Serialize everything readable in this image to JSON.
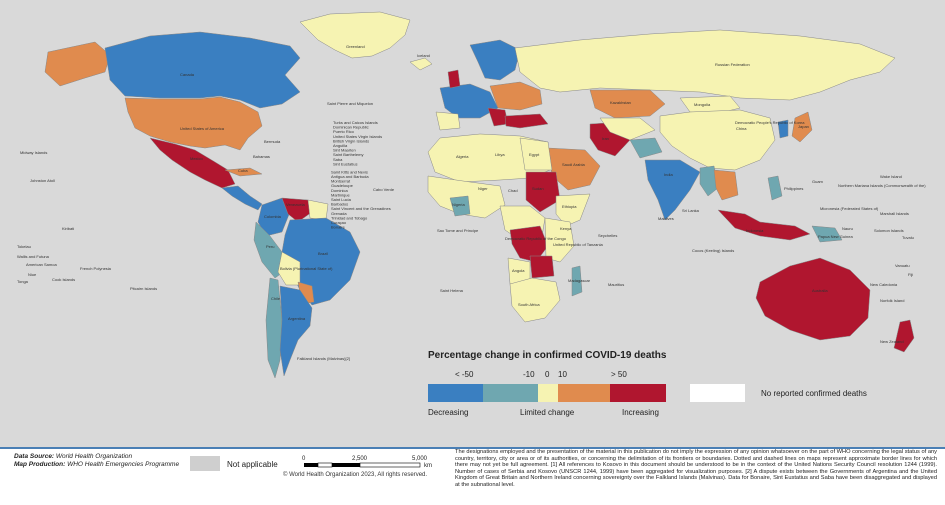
{
  "legend": {
    "title": "Percentage change in confirmed COVID-19 deaths",
    "ticks": [
      "< -50",
      "-10",
      "0",
      "10",
      "> 50"
    ],
    "categories": [
      {
        "label": "Decreasing",
        "color": "#3a7fc1"
      },
      {
        "label": "Limited change",
        "color": "#6fa7b0"
      },
      {
        "label": "",
        "color": "#f6f3b2"
      },
      {
        "label": "",
        "color": "#e08b4e"
      },
      {
        "label": "Increasing",
        "color": "#b0162f"
      }
    ],
    "no_data_label": "No reported confirmed deaths",
    "no_data_color": "#ffffff"
  },
  "footer": {
    "source_key": "Data Source:",
    "source_value": "World Health Organization",
    "production_key": "Map Production:",
    "production_value": "WHO Health Emergencies Programme",
    "not_applicable": "Not applicable",
    "scale_ticks": [
      "0",
      "2,500",
      "5,000"
    ],
    "scale_unit": "km",
    "copyright": "© World Health Organization 2023, All rights reserved.",
    "disclaimer": "The designations employed and the presentation of the material in this publication do not imply the expression of any opinion whatsoever on the part of WHO concerning the legal status of any country, territory, city or area or of its authorities, or concerning the delimitation of its frontiers or boundaries. Dotted and dashed lines on maps represent approximate border lines for which there may not yet be full agreement. [1] All references to Kosovo in this document should be understood to be in the context of the United Nations Security Council resolution 1244 (1999). Number of cases of Serbia and Kosovo (UNSCR 1244, 1999) have been aggregated for visualization purposes. [2] A dispute exists between the Governments of Argentina and the United Kingdom of Great Britain and Northern Ireland concerning sovereignty over the Falkland Islands (Malvinas). Data for Bonaire, Sint Eustatius and Saba have been disaggregated and displayed at the subnational level."
  },
  "map_labels": {
    "greenland": "Greenland",
    "iceland": "Iceland",
    "russia": "Russian Federation",
    "canada": "Canada",
    "usa": "United States of America",
    "mexico": "Mexico",
    "bermuda": "Bermuda",
    "bahamas": "Bahamas",
    "cuba": "Cuba",
    "brazil": "Brazil",
    "argentina": "Argentina",
    "peru": "Peru",
    "chile": "Chile",
    "bolivia": "Bolivia (Plurinational State of)",
    "colombia": "Colombia",
    "venezuela": "Venezuela",
    "china": "China",
    "india": "India",
    "kazakhstan": "Kazakhstan",
    "mongolia": "Mongolia",
    "australia": "Australia",
    "new_zealand": "New Zealand",
    "indonesia": "Indonesia",
    "saudi_arabia": "Saudi Arabia",
    "iran": "Iran",
    "egypt": "Egypt",
    "algeria": "Algeria",
    "libya": "Libya",
    "niger": "Niger",
    "chad": "Chad",
    "sudan": "Sudan",
    "ethiopia": "Ethiopia",
    "angola": "Angola",
    "south_africa": "South Africa",
    "madagascar": "Madagascar",
    "drc": "Democratic Republic of the Congo",
    "tanzania": "United Republic of Tanzania",
    "kenya": "Kenya",
    "nigeria": "Nigeria",
    "japan": "Japan",
    "dprk": "Democratic People's Republic of Korea",
    "philippines": "Philippines",
    "papua": "Papua New Guinea",
    "hawaii": "Midway Islands",
    "johnston": "Johnston Atoll",
    "kiribati": "Kiribati",
    "tokelau": "Tokelau",
    "wallis": "Wallis and Futuna",
    "samoa": "American Samoa",
    "niue": "Niue",
    "tonga": "Tonga",
    "cook": "Cook Islands",
    "polynesia": "French Polynesia",
    "pitcairn": "Pitcairn Islands",
    "falkland": "Falkland Islands (Malvinas)[2]",
    "saint_pierre": "Saint Pierre and Miquelon",
    "cabo_verde": "Cabo Verde",
    "sao_tome": "Sao Tome and Principe",
    "saint_helena": "Saint Helena",
    "seychelles": "Seychelles",
    "mauritius": "Mauritius",
    "sri_lanka": "Sri Lanka",
    "maldives": "Maldives",
    "guam": "Guam",
    "marshall": "Marshall Islands",
    "micronesia": "Micronesia (Federated States of)",
    "nauru": "Nauru",
    "solomon": "Solomon Islands",
    "tuvalu": "Tuvalu",
    "vanuatu": "Vanuatu",
    "fiji": "Fiji",
    "new_caledonia": "New Caledonia",
    "norfolk": "Norfolk Island",
    "wake": "Wake Island",
    "n_mariana": "Northern Mariana Islands (Commonwealth of the)",
    "cocos": "Cocos (Keeling) Islands",
    "caribbean": [
      "Turks and Caicos Islands",
      "Dominican Republic",
      "Puerto Rico",
      "United States Virgin Islands",
      "British Virgin Islands",
      "Anguilla",
      "Sint Maarten",
      "Saint Barthelemy",
      "Saba",
      "Sint Eustatius",
      "Saint Kitts and Nevis",
      "Antigua and Barbuda",
      "Montserrat",
      "Guadeloupe",
      "Dominica",
      "Martinique",
      "Saint Lucia",
      "Barbados",
      "Saint Vincent and the Grenadines",
      "Grenada",
      "Trinidad and Tobago",
      "Curaçao",
      "Bonaire"
    ]
  }
}
